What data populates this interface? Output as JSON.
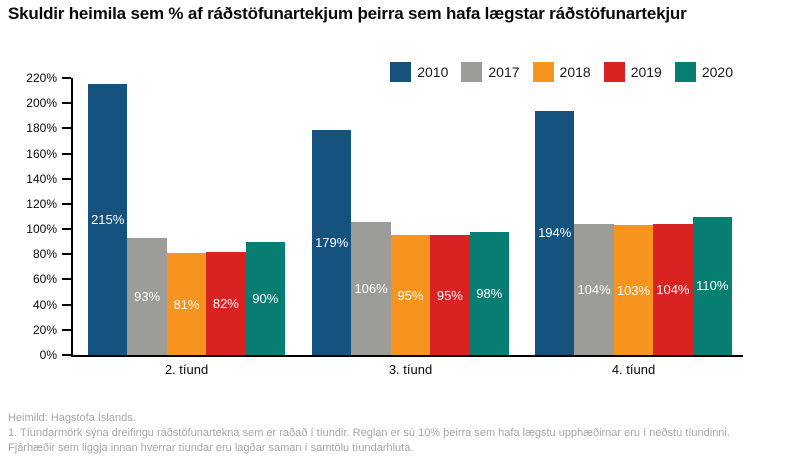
{
  "title": "Skuldir heimila sem % af ráðstöfunartekjum þeirra sem hafa lægstar ráðstöfunartekjur",
  "chart_data": {
    "type": "bar",
    "title": "Skuldir heimila sem % af ráðstöfunartekjum þeirra sem hafa lægstar ráðstöfunartekjur",
    "categories": [
      "2. tíund",
      "3. tíund",
      "4. tíund"
    ],
    "series": [
      {
        "name": "2010",
        "color": "#15537e",
        "values": [
          215,
          179,
          194
        ]
      },
      {
        "name": "2017",
        "color": "#9c9c98",
        "values": [
          93,
          106,
          104
        ]
      },
      {
        "name": "2018",
        "color": "#f7941e",
        "values": [
          81,
          95,
          103
        ]
      },
      {
        "name": "2019",
        "color": "#d92222",
        "values": [
          82,
          95,
          104
        ]
      },
      {
        "name": "2020",
        "color": "#087e72",
        "values": [
          90,
          98,
          110
        ]
      }
    ],
    "data_labels": true,
    "data_label_format": "{value}%",
    "data_label_color": "#ffffff",
    "ylim": [
      0,
      220
    ],
    "yticks": [
      0,
      20,
      40,
      60,
      80,
      100,
      120,
      140,
      160,
      180,
      200,
      220
    ],
    "ytick_labels": [
      "0%",
      "20%",
      "40%",
      "60%",
      "80%",
      "100%",
      "120%",
      "140%",
      "160%",
      "180%",
      "200%",
      "220%"
    ],
    "xlabel": "",
    "ylabel": "",
    "grid": false,
    "legend_position": "top-right",
    "axis_color": "#000000"
  },
  "footer": {
    "source": "Heimild: Hagstofa Íslands.",
    "note": "1. Tíundarmörk sýna dreifingu ráðstöfunartekna sem er raðað í tíundir. Reglan er sú 10% þeirra sem hafa lægstu upphæðirnar eru í neðstu tíundinni. Fjárhæðir sem liggja innan hverrar tíundar eru lagðar saman í samtölu tíundarhluta."
  },
  "colors": {
    "background": "#ffffff",
    "title_text": "#0a0a0a",
    "footer_text": "#a6a6a6"
  }
}
